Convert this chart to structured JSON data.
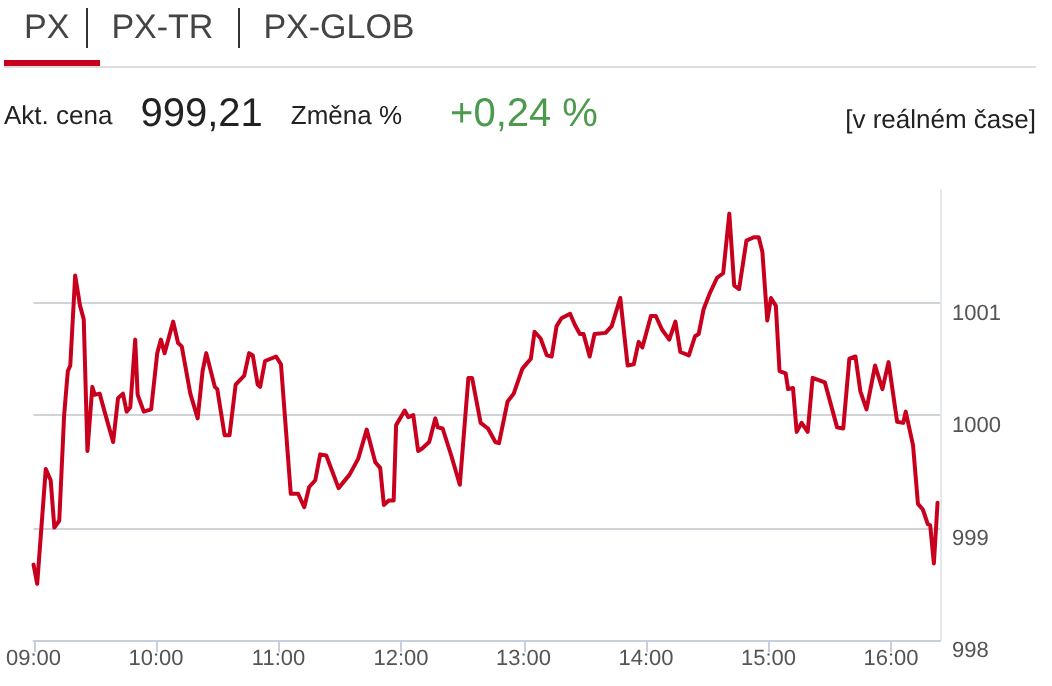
{
  "chart_data": {
    "type": "line",
    "title": "PX",
    "annotations": [
      "PX-TR",
      "PX-GLOB",
      "Akt. cena",
      "999,21",
      "Změna %",
      "+0,24 %",
      "[v reálném čase]"
    ],
    "x": [
      9.0,
      9.03,
      9.1,
      9.14,
      9.17,
      9.21,
      9.25,
      9.28,
      9.3,
      9.34,
      9.38,
      9.41,
      9.44,
      9.48,
      9.5,
      9.54,
      9.58,
      9.65,
      9.69,
      9.73,
      9.76,
      9.79,
      9.83,
      9.85,
      9.9,
      9.96,
      10.01,
      10.04,
      10.07,
      10.14,
      10.18,
      10.21,
      10.28,
      10.34,
      10.38,
      10.41,
      10.48,
      10.5,
      10.56,
      10.6,
      10.65,
      10.72,
      10.76,
      10.79,
      10.83,
      10.85,
      10.89,
      10.98,
      11.02,
      11.1,
      11.16,
      11.21,
      11.25,
      11.3,
      11.34,
      11.39,
      11.49,
      11.58,
      11.65,
      11.72,
      11.79,
      11.83,
      11.86,
      11.9,
      11.94,
      11.96,
      12.03,
      12.06,
      12.1,
      12.14,
      12.17,
      12.23,
      12.28,
      12.3,
      12.34,
      12.41,
      12.48,
      12.55,
      12.58,
      12.65,
      12.71,
      12.77,
      12.8,
      12.87,
      12.92,
      12.99,
      13.02,
      13.06,
      13.09,
      13.14,
      13.19,
      13.23,
      13.27,
      13.31,
      13.38,
      13.42,
      13.46,
      13.49,
      13.54,
      13.58,
      13.67,
      13.72,
      13.79,
      13.85,
      13.9,
      13.94,
      13.97,
      14.04,
      14.08,
      14.13,
      14.19,
      14.24,
      14.28,
      14.35,
      14.4,
      14.43,
      14.47,
      14.52,
      14.58,
      14.63,
      14.68,
      14.72,
      14.76,
      14.82,
      14.88,
      14.92,
      14.95,
      14.99,
      15.02,
      15.06,
      15.09,
      15.14,
      15.16,
      15.2,
      15.23,
      15.27,
      15.32,
      15.36,
      15.46,
      15.51,
      15.56,
      15.61,
      15.66,
      15.71,
      15.75,
      15.8,
      15.87,
      15.93,
      15.98,
      16.05,
      16.1,
      16.12,
      16.18,
      16.22,
      16.26,
      16.3,
      16.32,
      16.35,
      16.38
    ],
    "series": [
      {
        "color": "#c8001e",
        "values": [
          998.67,
          998.5,
          999.52,
          999.42,
          999.0,
          999.06,
          1000.0,
          1000.39,
          1000.44,
          1001.24,
          1000.97,
          1000.85,
          999.68,
          1000.25,
          1000.18,
          1000.19,
          1000.03,
          999.76,
          1000.15,
          1000.19,
          1000.03,
          1000.07,
          1000.67,
          1000.18,
          1000.03,
          1000.05,
          1000.55,
          1000.67,
          1000.55,
          1000.83,
          1000.64,
          1000.61,
          1000.19,
          999.97,
          1000.39,
          1000.55,
          1000.25,
          1000.23,
          999.82,
          999.82,
          1000.27,
          1000.35,
          1000.55,
          1000.53,
          1000.27,
          1000.25,
          1000.48,
          1000.52,
          1000.45,
          999.3,
          999.3,
          999.18,
          999.36,
          999.42,
          999.65,
          999.64,
          999.35,
          999.47,
          999.61,
          999.87,
          999.58,
          999.53,
          999.2,
          999.24,
          999.24,
          999.91,
          1000.04,
          999.98,
          1000.0,
          999.68,
          999.7,
          999.76,
          999.97,
          999.89,
          999.88,
          999.64,
          999.38,
          1000.33,
          1000.33,
          999.93,
          999.88,
          999.76,
          999.75,
          1000.12,
          1000.19,
          1000.41,
          1000.45,
          1000.5,
          1000.74,
          1000.68,
          1000.53,
          1000.52,
          1000.79,
          1000.86,
          1000.9,
          1000.8,
          1000.72,
          1000.72,
          1000.52,
          1000.72,
          1000.73,
          1000.79,
          1001.04,
          1000.44,
          1000.45,
          1000.65,
          1000.6,
          1000.88,
          1000.88,
          1000.76,
          1000.67,
          1000.83,
          1000.56,
          1000.53,
          1000.7,
          1000.72,
          1000.94,
          1001.08,
          1001.22,
          1001.26,
          1001.79,
          1001.15,
          1001.12,
          1001.55,
          1001.58,
          1001.58,
          1001.45,
          1000.84,
          1001.04,
          1000.97,
          1000.39,
          1000.37,
          1000.23,
          1000.24,
          999.85,
          999.93,
          999.85,
          1000.33,
          1000.29,
          1000.09,
          999.89,
          999.88,
          1000.5,
          1000.52,
          1000.21,
          1000.05,
          1000.44,
          1000.23,
          1000.47,
          999.94,
          999.93,
          1000.03,
          999.73,
          999.21,
          999.16,
          999.03,
          999.02,
          998.68,
          999.22
        ]
      }
    ],
    "xlim": [
      9,
      16.4
    ],
    "xticks": [
      {
        "value": 9,
        "label": "09:00"
      },
      {
        "value": 10,
        "label": "10:00"
      },
      {
        "value": 11,
        "label": "11:00"
      },
      {
        "value": 12,
        "label": "12:00"
      },
      {
        "value": 13,
        "label": "13:00"
      },
      {
        "value": 14,
        "label": "14:00"
      },
      {
        "value": 15,
        "label": "15:00"
      },
      {
        "value": 16,
        "label": "16:00"
      }
    ],
    "ylim": [
      998,
      1002
    ],
    "yticks": [
      998,
      999,
      1000,
      1001
    ],
    "grid": "y",
    "marker": "none",
    "line_style": "solid"
  }
}
